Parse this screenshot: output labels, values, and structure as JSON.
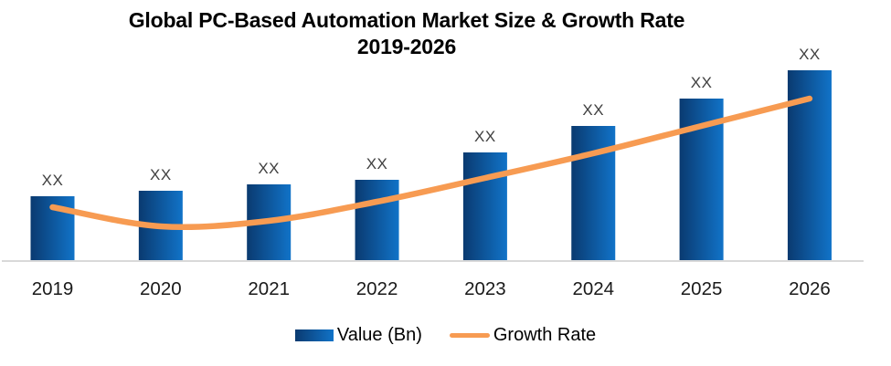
{
  "title": {
    "line1": "Global PC-Based Automation Market Size & Growth Rate",
    "line2": "2019-2026"
  },
  "legend": {
    "items": [
      {
        "label": "Value (Bn)",
        "swatch": "bar-gradient-swatch"
      },
      {
        "label": "Growth Rate",
        "swatch": "line-swatch"
      }
    ]
  },
  "colors": {
    "bar_gradient_start": "#0a3a70",
    "bar_gradient_end": "#1173c8",
    "line": "#f79b52",
    "axis": "#d9d9d9",
    "data_label": "#404040",
    "tick_label": "#1a1a1a",
    "title": "#000000"
  },
  "chart_data": {
    "type": "combo",
    "title": "Global PC-Based Automation Market Size & Growth Rate 2019-2026",
    "categories": [
      "2019",
      "2020",
      "2021",
      "2022",
      "2023",
      "2024",
      "2025",
      "2026"
    ],
    "series": [
      {
        "name": "Value (Bn)",
        "type": "bar",
        "data_labels": [
          "XX",
          "XX",
          "XX",
          "XX",
          "XX",
          "XX",
          "XX",
          "XX"
        ],
        "values_relative": [
          71,
          77,
          84,
          89,
          119,
          148,
          178,
          209
        ]
      },
      {
        "name": "Growth Rate",
        "type": "line",
        "smooth": true,
        "values_relative": [
          59,
          38,
          44,
          65,
          91,
          118,
          148,
          178
        ]
      }
    ],
    "value_axis_labels_visible": false,
    "grid": false,
    "legend_position": "bottom"
  }
}
